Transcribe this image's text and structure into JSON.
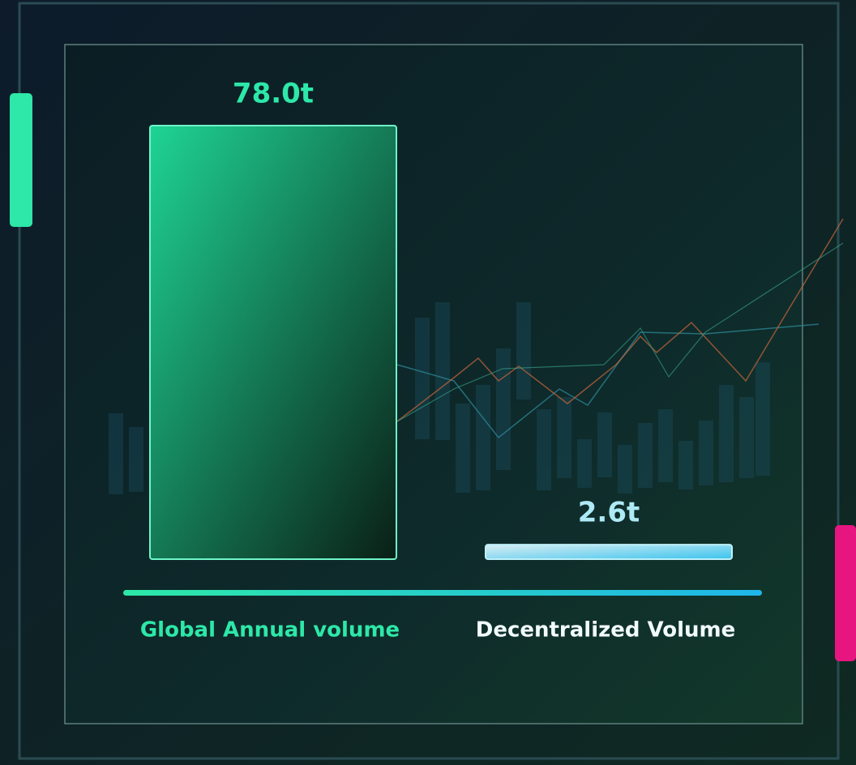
{
  "chart_data": {
    "type": "bar",
    "categories": [
      "Global Annual volume",
      "Decentralized Volume"
    ],
    "values": [
      78.0,
      2.6
    ],
    "value_labels": [
      "78.0t",
      "2.6t"
    ],
    "colors": [
      "#1fd495",
      "#3cc4ee"
    ],
    "label_colors": [
      "#2de8a8",
      "#f2fbfc"
    ]
  }
}
